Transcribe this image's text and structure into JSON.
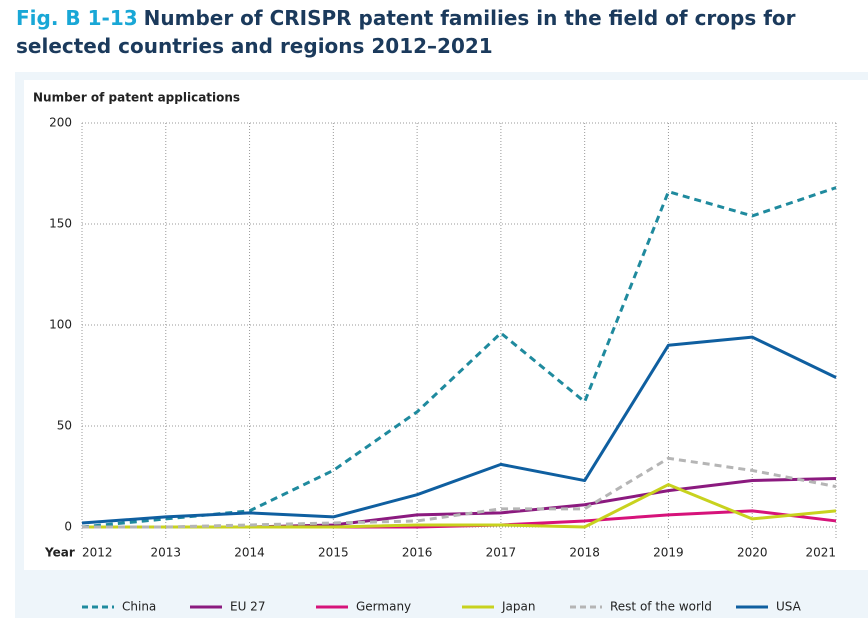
{
  "figure_label": "Fig. B 1-13",
  "chart_data": {
    "type": "line",
    "title": "Number of CRISPR patent families in the field of crops for selected countries and regions 2012–2021",
    "y_label": "Number of patent applications",
    "x_label": "Year",
    "x": [
      2012,
      2013,
      2014,
      2015,
      2016,
      2017,
      2018,
      2019,
      2020,
      2021
    ],
    "xlim": [
      2012,
      2021
    ],
    "xticks": [
      2012,
      2013,
      2014,
      2015,
      2016,
      2017,
      2018,
      2019,
      2020,
      2021
    ],
    "ylim": [
      0,
      200
    ],
    "yticks": [
      0,
      50,
      100,
      150,
      200
    ],
    "grid": true,
    "series": [
      {
        "name": "China",
        "color": "#1f8a9e",
        "dashed": true,
        "values": [
          0,
          4,
          8,
          28,
          57,
          96,
          62,
          166,
          154,
          168
        ]
      },
      {
        "name": "EU 27",
        "color": "#8b1a7f",
        "dashed": false,
        "values": [
          0,
          0,
          0,
          1,
          6,
          7,
          11,
          18,
          23,
          24
        ]
      },
      {
        "name": "Germany",
        "color": "#d6137a",
        "dashed": false,
        "values": [
          0,
          0,
          0,
          0,
          0,
          1,
          3,
          6,
          8,
          3
        ]
      },
      {
        "name": "Japan",
        "color": "#c8d21e",
        "dashed": false,
        "values": [
          0,
          0,
          0,
          0,
          1,
          1,
          0,
          21,
          4,
          8
        ]
      },
      {
        "name": "Rest of the world",
        "color": "#b5b5b5",
        "dashed": true,
        "values": [
          0,
          0,
          1,
          2,
          3,
          9,
          9,
          34,
          28,
          20
        ]
      },
      {
        "name": "USA",
        "color": "#0f5fa0",
        "dashed": false,
        "values": [
          2,
          5,
          7,
          5,
          16,
          31,
          23,
          90,
          94,
          74
        ]
      }
    ]
  }
}
